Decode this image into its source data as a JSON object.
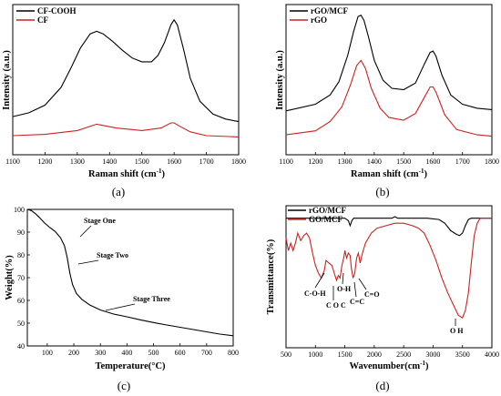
{
  "chart_data": [
    {
      "type": "line",
      "panel_label": "(a)",
      "xlabel": "Raman shift (cm-1)",
      "ylabel": "Intensity (a.u.)",
      "xlim": [
        1100,
        1800
      ],
      "ylim": [
        0,
        1
      ],
      "xticks": [
        1100,
        1200,
        1300,
        1400,
        1500,
        1600,
        1700,
        1800
      ],
      "legend_position": "top-left",
      "series": [
        {
          "name": "CF-COOH",
          "color": "#000000",
          "x": [
            1100,
            1150,
            1200,
            1250,
            1280,
            1310,
            1340,
            1360,
            1380,
            1410,
            1440,
            1470,
            1500,
            1530,
            1550,
            1570,
            1590,
            1600,
            1610,
            1630,
            1650,
            1680,
            1720,
            1760,
            1800
          ],
          "y": [
            0.2,
            0.23,
            0.29,
            0.43,
            0.58,
            0.74,
            0.85,
            0.87,
            0.85,
            0.79,
            0.72,
            0.66,
            0.63,
            0.63,
            0.68,
            0.78,
            0.92,
            0.96,
            0.92,
            0.72,
            0.5,
            0.32,
            0.22,
            0.18,
            0.16
          ]
        },
        {
          "name": "CF",
          "color": "#cc2222",
          "x": [
            1100,
            1200,
            1300,
            1360,
            1420,
            1500,
            1560,
            1590,
            1600,
            1620,
            1650,
            1700,
            1800
          ],
          "y": [
            0.05,
            0.06,
            0.09,
            0.14,
            0.11,
            0.09,
            0.11,
            0.15,
            0.15,
            0.12,
            0.08,
            0.05,
            0.04
          ]
        }
      ]
    },
    {
      "type": "line",
      "panel_label": "(b)",
      "xlabel": "Raman shift (cm-1)",
      "ylabel": "Intensity (a.u.)",
      "xlim": [
        1100,
        1800
      ],
      "ylim": [
        0,
        1
      ],
      "xticks": [
        1100,
        1200,
        1300,
        1400,
        1500,
        1600,
        1700,
        1800
      ],
      "legend_position": "top-left",
      "series": [
        {
          "name": "rGO/MCF",
          "color": "#000000",
          "x": [
            1100,
            1200,
            1250,
            1280,
            1310,
            1330,
            1345,
            1355,
            1365,
            1380,
            1400,
            1430,
            1460,
            1500,
            1540,
            1570,
            1590,
            1600,
            1610,
            1630,
            1660,
            1700,
            1750,
            1800
          ],
          "y": [
            0.28,
            0.33,
            0.4,
            0.5,
            0.7,
            0.88,
            0.99,
            1.0,
            0.96,
            0.84,
            0.66,
            0.51,
            0.45,
            0.44,
            0.49,
            0.63,
            0.72,
            0.73,
            0.69,
            0.55,
            0.4,
            0.33,
            0.3,
            0.29
          ]
        },
        {
          "name": "rGO",
          "color": "#cc2222",
          "x": [
            1100,
            1200,
            1250,
            1290,
            1320,
            1340,
            1355,
            1370,
            1390,
            1420,
            1450,
            1500,
            1540,
            1570,
            1590,
            1600,
            1610,
            1640,
            1680,
            1750,
            1800
          ],
          "y": [
            0.1,
            0.13,
            0.2,
            0.31,
            0.48,
            0.62,
            0.66,
            0.6,
            0.45,
            0.3,
            0.23,
            0.21,
            0.26,
            0.38,
            0.46,
            0.46,
            0.42,
            0.25,
            0.14,
            0.1,
            0.09
          ]
        }
      ]
    },
    {
      "type": "line",
      "panel_label": "(c)",
      "xlabel": "Temperature(°C)",
      "ylabel": "Weight(%)",
      "xlim": [
        25,
        800
      ],
      "ylim": [
        40,
        100
      ],
      "xticks": [
        100,
        200,
        300,
        400,
        500,
        600,
        700,
        800
      ],
      "yticks": [
        40,
        50,
        60,
        70,
        80,
        90,
        100
      ],
      "annotations": [
        "Stage One",
        "Stage Two",
        "Stage Three"
      ],
      "series": [
        {
          "name": "",
          "color": "#000000",
          "x": [
            25,
            40,
            55,
            70,
            90,
            110,
            130,
            150,
            165,
            175,
            185,
            195,
            210,
            230,
            260,
            300,
            350,
            400,
            450,
            500,
            550,
            600,
            650,
            700,
            750,
            800
          ],
          "y": [
            100,
            99.5,
            98.2,
            96.5,
            94,
            92,
            90.3,
            87.5,
            84,
            79,
            72,
            67,
            63,
            60.5,
            58,
            55.8,
            54,
            52.8,
            51.5,
            50.3,
            49.2,
            48.2,
            47.2,
            46.2,
            45.2,
            44.5
          ]
        }
      ]
    },
    {
      "type": "line",
      "panel_label": "(d)",
      "xlabel": "Wavenumber(cm-1)",
      "ylabel": "Transmittance(%)",
      "xlim": [
        500,
        4000
      ],
      "xticks": [
        500,
        1000,
        1500,
        2000,
        2500,
        3000,
        3500,
        4000
      ],
      "legend_position": "top-left",
      "annotations": [
        "C-O-H",
        "C O C",
        "O-H",
        "C=C",
        "C=O",
        "O H"
      ],
      "series": [
        {
          "name": "rGO/MCF",
          "color": "#000000",
          "x": [
            500,
            700,
            900,
            1100,
            1300,
            1500,
            1560,
            1590,
            1620,
            1650,
            1700,
            1900,
            2100,
            2300,
            2350,
            2400,
            2500,
            2700,
            2900,
            3100,
            3200,
            3300,
            3400,
            3450,
            3500,
            3550,
            3600,
            3650,
            3700,
            3800,
            4000
          ],
          "y": [
            92,
            92,
            92,
            92,
            92,
            92,
            91,
            89,
            91,
            92,
            92,
            92,
            92,
            92,
            92.6,
            92,
            92,
            92,
            92,
            91.5,
            90,
            87,
            85.5,
            85,
            86,
            89,
            91.5,
            92,
            92,
            92,
            92
          ]
        },
        {
          "name": "GO/MCF",
          "color": "#cc2222",
          "x": [
            500,
            540,
            580,
            620,
            660,
            700,
            750,
            800,
            850,
            900,
            950,
            1000,
            1050,
            1100,
            1150,
            1180,
            1230,
            1280,
            1320,
            1360,
            1390,
            1420,
            1450,
            1480,
            1500,
            1530,
            1560,
            1590,
            1610,
            1640,
            1670,
            1700,
            1730,
            1760,
            1800,
            1850,
            1950,
            2050,
            2200,
            2350,
            2500,
            2650,
            2750,
            2850,
            2950,
            3050,
            3150,
            3250,
            3350,
            3430,
            3500,
            3550,
            3600,
            3650,
            3700,
            3750,
            3800,
            3900,
            4000
          ],
          "y": [
            84,
            79,
            82,
            79,
            82,
            86,
            83,
            85,
            86,
            84,
            78,
            73,
            70,
            68,
            71,
            75,
            74,
            73,
            70,
            67,
            69,
            68,
            73,
            76,
            79,
            76,
            78,
            77,
            72,
            68,
            70,
            76,
            78,
            74,
            78,
            82,
            86,
            88,
            89,
            90,
            90,
            89,
            88,
            86,
            81,
            75,
            68,
            62,
            57,
            53,
            52,
            55,
            62,
            74,
            85,
            90,
            92,
            92,
            92
          ]
        }
      ]
    }
  ]
}
